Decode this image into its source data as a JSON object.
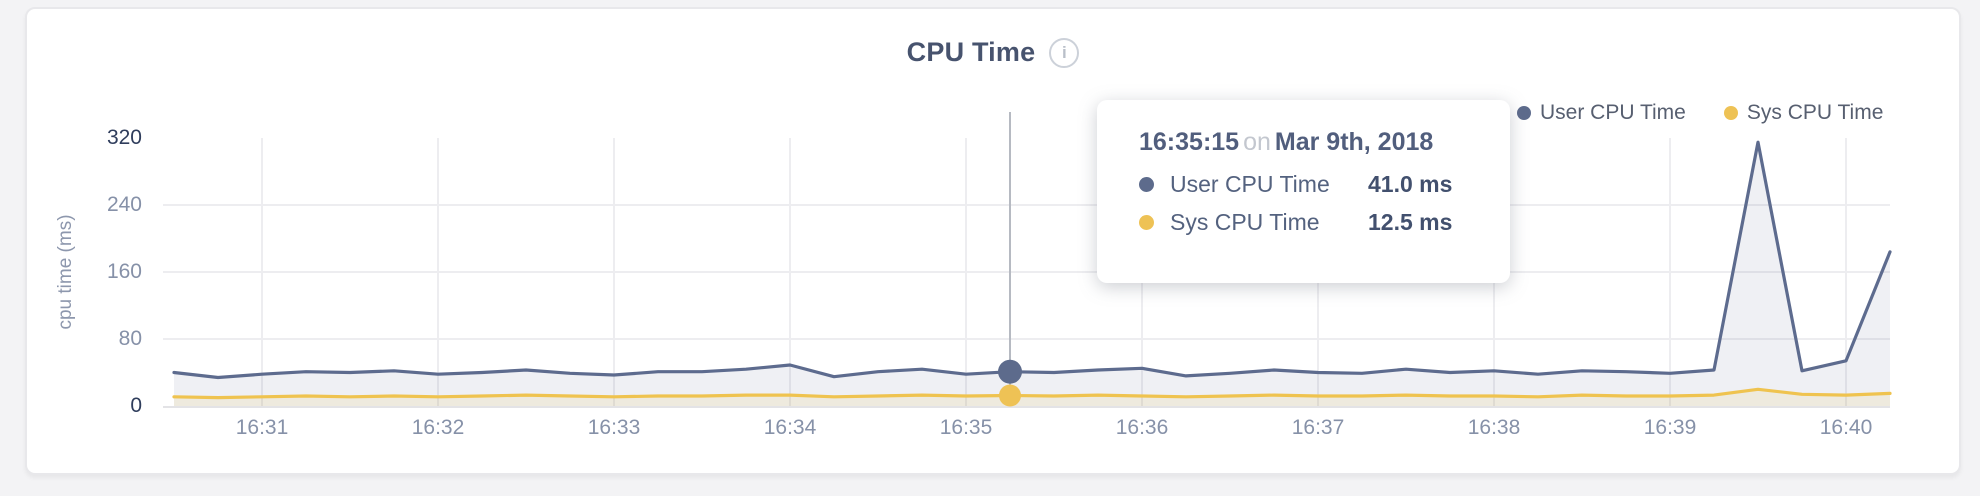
{
  "header": {
    "title": "CPU Time",
    "info_icon": "i"
  },
  "legend": {
    "items": [
      {
        "label": "User CPU Time",
        "color": "#5d6b8c"
      },
      {
        "label": "Sys CPU Time",
        "color": "#eec255"
      }
    ]
  },
  "tooltip": {
    "time": "16:35:15",
    "conjunction": "on",
    "date": "Mar 9th, 2018",
    "rows": [
      {
        "label": "User CPU Time",
        "value": "41.0 ms",
        "color": "#5d6b8c"
      },
      {
        "label": "Sys CPU Time",
        "value": "12.5 ms",
        "color": "#eec255"
      }
    ]
  },
  "chart_data": {
    "type": "area",
    "title": "CPU Time",
    "xlabel": "",
    "ylabel": "cpu time (ms)",
    "ylim": [
      0,
      320
    ],
    "y_ticks": [
      0,
      80,
      160,
      240,
      320
    ],
    "x_ticks": [
      "16:31",
      "16:32",
      "16:33",
      "16:34",
      "16:35",
      "16:36",
      "16:37",
      "16:38",
      "16:39",
      "16:40"
    ],
    "grid": true,
    "legend_position": "top-right",
    "sample_interval_seconds": 15,
    "times": [
      "16:30:30",
      "16:30:45",
      "16:31:00",
      "16:31:15",
      "16:31:30",
      "16:31:45",
      "16:32:00",
      "16:32:15",
      "16:32:30",
      "16:32:45",
      "16:33:00",
      "16:33:15",
      "16:33:30",
      "16:33:45",
      "16:34:00",
      "16:34:15",
      "16:34:30",
      "16:34:45",
      "16:35:00",
      "16:35:15",
      "16:35:30",
      "16:35:45",
      "16:36:00",
      "16:36:15",
      "16:36:30",
      "16:36:45",
      "16:37:00",
      "16:37:15",
      "16:37:30",
      "16:37:45",
      "16:38:00",
      "16:38:15",
      "16:38:30",
      "16:38:45",
      "16:39:00",
      "16:39:15",
      "16:39:30",
      "16:39:45",
      "16:40:00",
      "16:40:15"
    ],
    "series": [
      {
        "name": "User CPU Time",
        "color": "#5d6b8e",
        "fill": "rgba(99,112,144,0.10)",
        "values": [
          40,
          34,
          38,
          41,
          40,
          42,
          38,
          40,
          43,
          39,
          37,
          41,
          41,
          44,
          49,
          35,
          41,
          44,
          38,
          41,
          40,
          43,
          45,
          36,
          39,
          43,
          40,
          39,
          44,
          40,
          42,
          38,
          42,
          41,
          39,
          43,
          315,
          42,
          54,
          184
        ]
      },
      {
        "name": "Sys CPU Time",
        "color": "#efc34f",
        "fill": "rgba(236,196,90,0.14)",
        "values": [
          11,
          10,
          11,
          12,
          11,
          12,
          11,
          12,
          13,
          12,
          11,
          12,
          12,
          13,
          13,
          11,
          12,
          13,
          12,
          12.5,
          12,
          13,
          12,
          11,
          12,
          13,
          12,
          12,
          13,
          12,
          12,
          11,
          13,
          12,
          12,
          13,
          20,
          14,
          13,
          15
        ]
      }
    ],
    "hover": {
      "index": 19,
      "time": "16:35:15",
      "user_ms": 41.0,
      "sys_ms": 12.5
    }
  }
}
